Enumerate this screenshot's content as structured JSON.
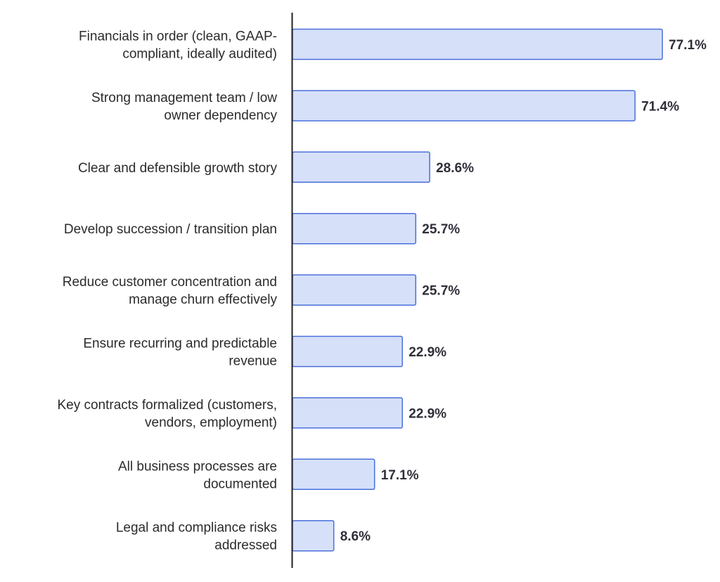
{
  "chart_data": {
    "type": "bar",
    "orientation": "horizontal",
    "categories": [
      [
        "Financials in order (clean, GAAP-",
        "compliant, ideally audited)"
      ],
      [
        "Strong management team / low",
        "owner dependency"
      ],
      [
        "Clear and defensible growth story"
      ],
      [
        "Develop succession / transition plan"
      ],
      [
        "Reduce customer concentration and",
        "manage churn effectively"
      ],
      [
        "Ensure recurring and predictable",
        "revenue"
      ],
      [
        "Key contracts formalized (customers,",
        "vendors, employment)"
      ],
      [
        "All business processes are",
        "documented"
      ],
      [
        "Legal and compliance risks",
        "addressed"
      ]
    ],
    "values": [
      77.1,
      71.4,
      28.6,
      25.7,
      25.7,
      22.9,
      22.9,
      17.1,
      8.6
    ],
    "value_labels": [
      "77.1%",
      "71.4%",
      "28.6%",
      "25.7%",
      "25.7%",
      "22.9%",
      "22.9%",
      "17.1%",
      "8.6%"
    ],
    "title": "",
    "xlabel": "",
    "ylabel": "",
    "xlim": [
      0,
      100
    ],
    "grid": false,
    "legend": "none",
    "colors": {
      "bar_fill": "#d6e0f9",
      "bar_stroke": "#4a6fdc",
      "axis": "#222222",
      "label_text": "#2b2b2b",
      "value_text": "#2f2f3a"
    }
  }
}
